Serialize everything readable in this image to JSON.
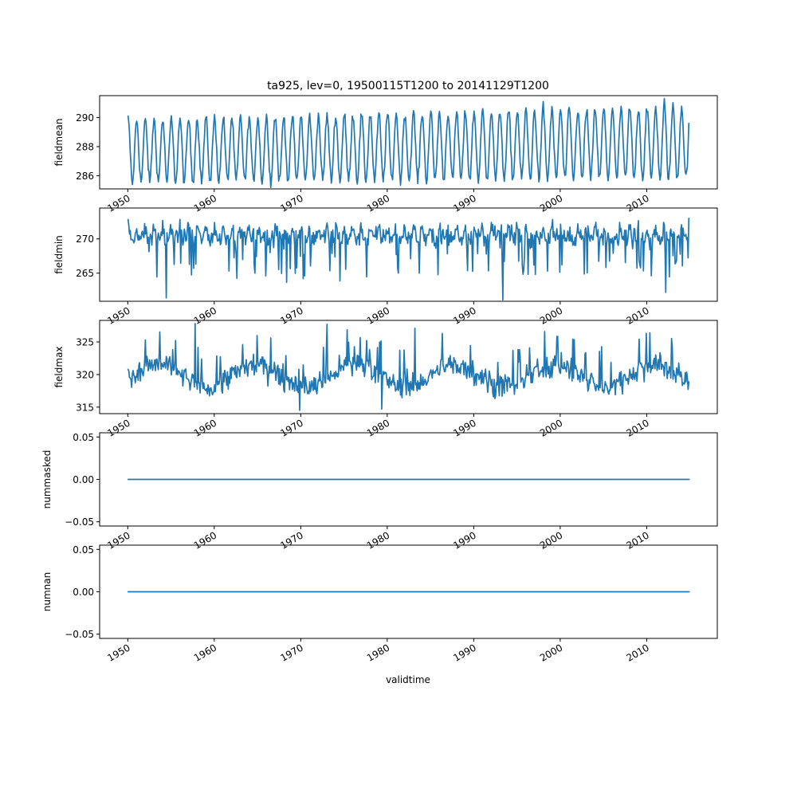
{
  "figure_title": "ta925, lev=0, 19500115T1200 to 20141129T1200",
  "xlabel": "validtime",
  "line_color": "#1f77b4",
  "chart_data": [
    {
      "type": "line",
      "ylabel": "fieldmean",
      "xlim": [
        "1946-10-01",
        "2018-03-01"
      ],
      "ylim": [
        285.1,
        291.5
      ],
      "yticks": [
        286,
        288,
        290
      ],
      "ytick_labels": [
        "286",
        "288",
        "290"
      ],
      "x_range": [
        "1950-01-15",
        "2014-11-29"
      ],
      "series": [
        {
          "pattern": "seasonal cycle, monthly",
          "min_value": 285.2,
          "max_value": 291.3,
          "description_points": [
            {
              "date": "1950-01-15",
              "value": 290.1
            },
            {
              "date": "1950-07-15",
              "value": 285.4
            },
            {
              "date": "1966-07-15",
              "value": 285.2
            },
            {
              "date": "1998-01-15",
              "value": 291.1
            },
            {
              "date": "2012-01-15",
              "value": 291.3
            },
            {
              "date": "2014-11-29",
              "value": 289.6
            }
          ]
        }
      ]
    },
    {
      "type": "line",
      "ylabel": "fieldmin",
      "xlim": [
        "1946-10-01",
        "2018-03-01"
      ],
      "ylim": [
        260.9,
        274.5
      ],
      "yticks": [
        265,
        270
      ],
      "ytick_labels": [
        "265",
        "270"
      ],
      "x_range": [
        "1950-01-15",
        "2014-11-29"
      ],
      "series": [
        {
          "pattern": "noisy seasonal",
          "min_value": 261.1,
          "max_value": 273.6,
          "notable_points": [
            {
              "date": "1954-06-15",
              "value": 261.4
            },
            {
              "date": "1970-04-15",
              "value": 264.2
            },
            {
              "date": "1993-05-15",
              "value": 261.1
            },
            {
              "date": "2012-03-15",
              "value": 262.2
            },
            {
              "date": "2014-11-29",
              "value": 273.0
            }
          ]
        }
      ]
    },
    {
      "type": "line",
      "ylabel": "fieldmax",
      "xlim": [
        "1946-10-01",
        "2018-03-01"
      ],
      "ylim": [
        314.0,
        328.3
      ],
      "yticks": [
        315,
        320,
        325
      ],
      "ytick_labels": [
        "315",
        "320",
        "325"
      ],
      "x_range": [
        "1950-01-15",
        "2014-11-29"
      ],
      "series": [
        {
          "pattern": "noisy with peaks",
          "min_value": 314.5,
          "max_value": 327.8,
          "notable_points": [
            {
              "date": "1957-10-15",
              "value": 327.8
            },
            {
              "date": "1973-01-15",
              "value": 327.7
            },
            {
              "date": "1983-03-15",
              "value": 327.1
            },
            {
              "date": "1969-11-15",
              "value": 314.5
            },
            {
              "date": "1979-05-15",
              "value": 314.7
            }
          ]
        }
      ]
    },
    {
      "type": "line",
      "ylabel": "nummasked",
      "xlim": [
        "1946-10-01",
        "2018-03-01"
      ],
      "ylim": [
        -0.055,
        0.055
      ],
      "yticks": [
        -0.05,
        0.0,
        0.05
      ],
      "ytick_labels": [
        "−0.05",
        "0.00",
        "0.05"
      ],
      "x_range": [
        "1950-01-15",
        "2014-11-29"
      ],
      "series": [
        {
          "constant_value": 0.0
        }
      ]
    },
    {
      "type": "line",
      "ylabel": "numnan",
      "xlim": [
        "1946-10-01",
        "2018-03-01"
      ],
      "ylim": [
        -0.055,
        0.055
      ],
      "yticks": [
        -0.05,
        0.0,
        0.05
      ],
      "ytick_labels": [
        "−0.05",
        "0.00",
        "0.05"
      ],
      "x_range": [
        "1950-01-15",
        "2014-11-29"
      ],
      "series": [
        {
          "constant_value": 0.0
        }
      ]
    }
  ],
  "xticks": [
    "1950-01-01",
    "1960-01-01",
    "1970-01-01",
    "1980-01-01",
    "1990-01-01",
    "2000-01-01",
    "2010-01-01"
  ],
  "xtick_labels": [
    "1950",
    "1960",
    "1970",
    "1980",
    "1990",
    "2000",
    "2010"
  ]
}
